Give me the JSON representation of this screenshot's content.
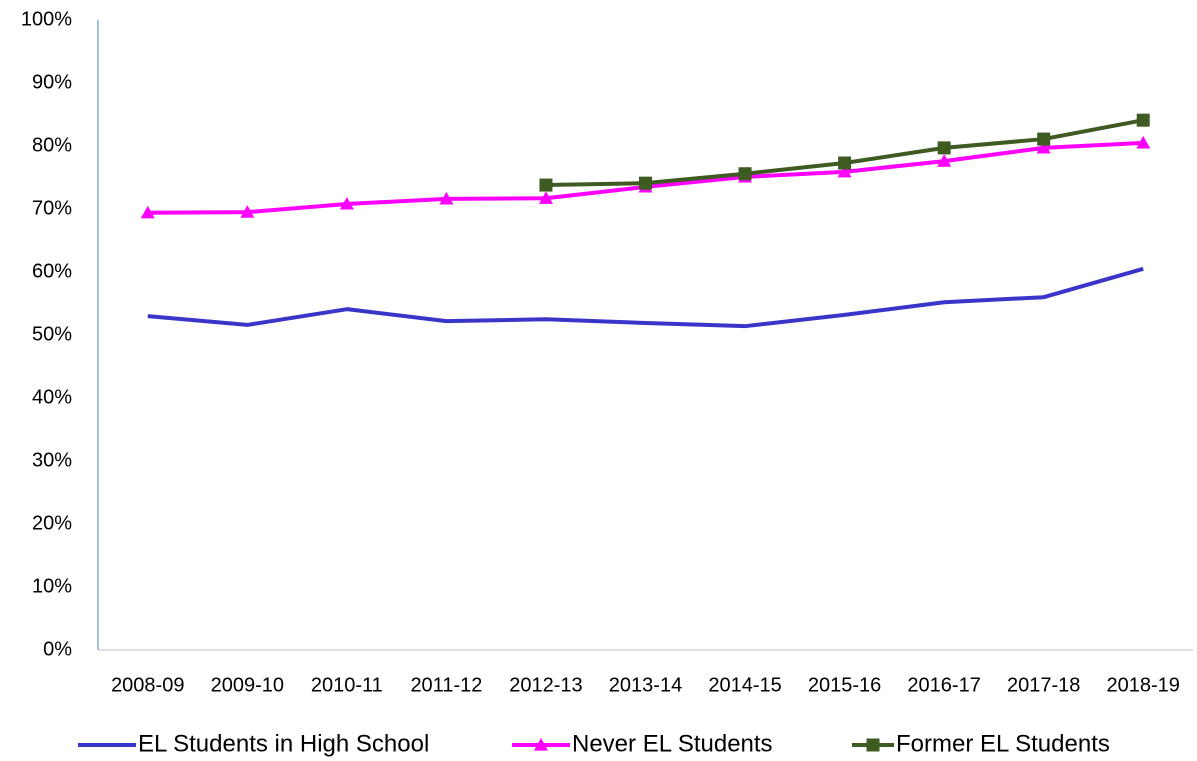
{
  "chart_data": {
    "type": "line",
    "categories": [
      "2008-09",
      "2009-10",
      "2010-11",
      "2011-12",
      "2012-13",
      "2013-14",
      "2014-15",
      "2015-16",
      "2016-17",
      "2017-18",
      "2018-19"
    ],
    "series": [
      {
        "name": "EL Students in High School",
        "color": "#3a35c9",
        "marker": "none",
        "values": [
          53.0,
          51.6,
          54.1,
          52.2,
          52.5,
          51.9,
          51.4,
          53.2,
          55.2,
          56.0,
          60.5
        ]
      },
      {
        "name": "Never EL Students",
        "color": "#ff00ff",
        "marker": "triangle",
        "values": [
          69.4,
          69.5,
          70.8,
          71.6,
          71.7,
          73.5,
          75.1,
          75.9,
          77.6,
          79.7,
          80.5
        ]
      },
      {
        "name": "Former EL Students",
        "color": "#3e5b22",
        "marker": "square",
        "values": [
          null,
          null,
          null,
          null,
          73.8,
          74.1,
          75.6,
          77.3,
          79.7,
          81.1,
          84.1
        ]
      }
    ],
    "ylim": [
      0,
      100
    ],
    "yticks": [
      {
        "value": 0,
        "label": "0%"
      },
      {
        "value": 10,
        "label": "10%"
      },
      {
        "value": 20,
        "label": "20%"
      },
      {
        "value": 30,
        "label": "30%"
      },
      {
        "value": 40,
        "label": "40%"
      },
      {
        "value": 50,
        "label": "50%"
      },
      {
        "value": 60,
        "label": "60%"
      },
      {
        "value": 70,
        "label": "70%"
      },
      {
        "value": 80,
        "label": "80%"
      },
      {
        "value": 90,
        "label": "90%"
      },
      {
        "value": 100,
        "label": "100%"
      }
    ],
    "grid": false,
    "legend": "bottom"
  }
}
